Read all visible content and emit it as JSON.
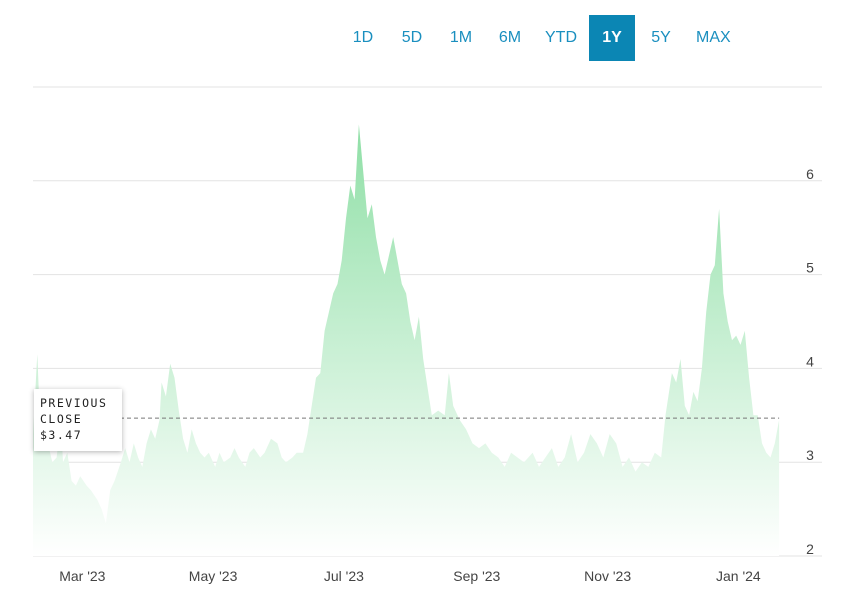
{
  "range_selector": {
    "buttons": [
      "1D",
      "5D",
      "1M",
      "6M",
      "YTD",
      "1Y",
      "5Y",
      "MAX"
    ],
    "active": "1Y"
  },
  "previous_close": {
    "line1": "PREVIOUS",
    "line2": "CLOSE",
    "value_label": "$3.47",
    "value": 3.47
  },
  "colors": {
    "area_top": "#8fdfa6",
    "area_bottom": "#ffffff",
    "button_text": "#1a8fbf",
    "button_active_bg": "#0b86b4"
  },
  "chart_data": {
    "type": "area",
    "title": "",
    "xlabel": "",
    "ylabel": "",
    "ylim": [
      2,
      7
    ],
    "yticks": [
      2,
      3,
      4,
      5,
      6
    ],
    "xlim": [
      "2023-02-06",
      "2024-02-09"
    ],
    "xticks": [
      {
        "label": "Mar '23",
        "date": "2023-03-01"
      },
      {
        "label": "May '23",
        "date": "2023-05-01"
      },
      {
        "label": "Jul '23",
        "date": "2023-07-01"
      },
      {
        "label": "Sep '23",
        "date": "2023-09-01"
      },
      {
        "label": "Nov '23",
        "date": "2023-11-01"
      },
      {
        "label": "Jan '24",
        "date": "2024-01-01"
      }
    ],
    "grid": "horizontal",
    "series": [
      {
        "values": [
          [
            "2023-02-06",
            3.3
          ],
          [
            "2023-02-08",
            4.15
          ],
          [
            "2023-02-09",
            3.6
          ],
          [
            "2023-02-11",
            3.5
          ],
          [
            "2023-02-13",
            3.2
          ],
          [
            "2023-02-15",
            3.0
          ],
          [
            "2023-02-17",
            3.05
          ],
          [
            "2023-02-19",
            3.45
          ],
          [
            "2023-02-20",
            3.0
          ],
          [
            "2023-02-22",
            3.1
          ],
          [
            "2023-02-24",
            2.8
          ],
          [
            "2023-02-26",
            2.75
          ],
          [
            "2023-02-28",
            2.85
          ],
          [
            "2023-03-03",
            2.75
          ],
          [
            "2023-03-05",
            2.7
          ],
          [
            "2023-03-08",
            2.6
          ],
          [
            "2023-03-10",
            2.5
          ],
          [
            "2023-03-12",
            2.35
          ],
          [
            "2023-03-14",
            2.7
          ],
          [
            "2023-03-16",
            2.8
          ],
          [
            "2023-03-19",
            3.0
          ],
          [
            "2023-03-21",
            3.15
          ],
          [
            "2023-03-23",
            3.0
          ],
          [
            "2023-03-25",
            3.2
          ],
          [
            "2023-03-27",
            3.05
          ],
          [
            "2023-03-29",
            2.95
          ],
          [
            "2023-03-31",
            3.2
          ],
          [
            "2023-04-02",
            3.35
          ],
          [
            "2023-04-04",
            3.25
          ],
          [
            "2023-04-06",
            3.45
          ],
          [
            "2023-04-07",
            3.85
          ],
          [
            "2023-04-09",
            3.7
          ],
          [
            "2023-04-11",
            4.05
          ],
          [
            "2023-04-13",
            3.9
          ],
          [
            "2023-04-15",
            3.55
          ],
          [
            "2023-04-17",
            3.25
          ],
          [
            "2023-04-19",
            3.1
          ],
          [
            "2023-04-21",
            3.35
          ],
          [
            "2023-04-23",
            3.2
          ],
          [
            "2023-04-25",
            3.1
          ],
          [
            "2023-04-27",
            3.05
          ],
          [
            "2023-04-29",
            3.1
          ],
          [
            "2023-05-02",
            2.95
          ],
          [
            "2023-05-04",
            3.1
          ],
          [
            "2023-05-06",
            3.0
          ],
          [
            "2023-05-09",
            3.05
          ],
          [
            "2023-05-11",
            3.15
          ],
          [
            "2023-05-13",
            3.05
          ],
          [
            "2023-05-16",
            2.95
          ],
          [
            "2023-05-18",
            3.1
          ],
          [
            "2023-05-20",
            3.15
          ],
          [
            "2023-05-23",
            3.05
          ],
          [
            "2023-05-25",
            3.1
          ],
          [
            "2023-05-28",
            3.25
          ],
          [
            "2023-05-31",
            3.2
          ],
          [
            "2023-06-02",
            3.05
          ],
          [
            "2023-06-04",
            3.0
          ],
          [
            "2023-06-07",
            3.05
          ],
          [
            "2023-06-09",
            3.1
          ],
          [
            "2023-06-12",
            3.1
          ],
          [
            "2023-06-14",
            3.3
          ],
          [
            "2023-06-16",
            3.6
          ],
          [
            "2023-06-18",
            3.9
          ],
          [
            "2023-06-20",
            3.95
          ],
          [
            "2023-06-22",
            4.4
          ],
          [
            "2023-06-24",
            4.6
          ],
          [
            "2023-06-26",
            4.8
          ],
          [
            "2023-06-28",
            4.9
          ],
          [
            "2023-06-30",
            5.15
          ],
          [
            "2023-07-02",
            5.6
          ],
          [
            "2023-07-04",
            5.95
          ],
          [
            "2023-07-06",
            5.8
          ],
          [
            "2023-07-08",
            6.6
          ],
          [
            "2023-07-10",
            6.1
          ],
          [
            "2023-07-12",
            5.6
          ],
          [
            "2023-07-14",
            5.75
          ],
          [
            "2023-07-16",
            5.4
          ],
          [
            "2023-07-18",
            5.15
          ],
          [
            "2023-07-20",
            5.0
          ],
          [
            "2023-07-22",
            5.2
          ],
          [
            "2023-07-24",
            5.4
          ],
          [
            "2023-07-26",
            5.15
          ],
          [
            "2023-07-28",
            4.9
          ],
          [
            "2023-07-30",
            4.8
          ],
          [
            "2023-08-01",
            4.5
          ],
          [
            "2023-08-03",
            4.3
          ],
          [
            "2023-08-05",
            4.55
          ],
          [
            "2023-08-07",
            4.1
          ],
          [
            "2023-08-09",
            3.8
          ],
          [
            "2023-08-11",
            3.5
          ],
          [
            "2023-08-14",
            3.55
          ],
          [
            "2023-08-17",
            3.5
          ],
          [
            "2023-08-19",
            3.95
          ],
          [
            "2023-08-21",
            3.6
          ],
          [
            "2023-08-24",
            3.45
          ],
          [
            "2023-08-27",
            3.35
          ],
          [
            "2023-08-30",
            3.2
          ],
          [
            "2023-09-02",
            3.15
          ],
          [
            "2023-09-05",
            3.2
          ],
          [
            "2023-09-08",
            3.1
          ],
          [
            "2023-09-11",
            3.05
          ],
          [
            "2023-09-14",
            2.95
          ],
          [
            "2023-09-17",
            3.1
          ],
          [
            "2023-09-20",
            3.05
          ],
          [
            "2023-09-23",
            3.0
          ],
          [
            "2023-09-27",
            3.1
          ],
          [
            "2023-09-30",
            2.95
          ],
          [
            "2023-10-03",
            3.05
          ],
          [
            "2023-10-06",
            3.15
          ],
          [
            "2023-10-09",
            2.95
          ],
          [
            "2023-10-12",
            3.05
          ],
          [
            "2023-10-15",
            3.3
          ],
          [
            "2023-10-18",
            3.0
          ],
          [
            "2023-10-21",
            3.1
          ],
          [
            "2023-10-24",
            3.3
          ],
          [
            "2023-10-27",
            3.2
          ],
          [
            "2023-10-30",
            3.05
          ],
          [
            "2023-11-02",
            3.3
          ],
          [
            "2023-11-05",
            3.2
          ],
          [
            "2023-11-08",
            2.95
          ],
          [
            "2023-11-11",
            3.05
          ],
          [
            "2023-11-14",
            2.9
          ],
          [
            "2023-11-17",
            3.0
          ],
          [
            "2023-11-20",
            2.95
          ],
          [
            "2023-11-23",
            3.1
          ],
          [
            "2023-11-26",
            3.05
          ],
          [
            "2023-11-28",
            3.5
          ],
          [
            "2023-12-01",
            3.95
          ],
          [
            "2023-12-03",
            3.85
          ],
          [
            "2023-12-05",
            4.1
          ],
          [
            "2023-12-07",
            3.6
          ],
          [
            "2023-12-09",
            3.5
          ],
          [
            "2023-12-11",
            3.75
          ],
          [
            "2023-12-13",
            3.65
          ],
          [
            "2023-12-15",
            4.0
          ],
          [
            "2023-12-17",
            4.6
          ],
          [
            "2023-12-19",
            5.0
          ],
          [
            "2023-12-21",
            5.1
          ],
          [
            "2023-12-23",
            5.7
          ],
          [
            "2023-12-25",
            4.8
          ],
          [
            "2023-12-27",
            4.5
          ],
          [
            "2023-12-29",
            4.3
          ],
          [
            "2023-12-31",
            4.35
          ],
          [
            "2024-01-02",
            4.25
          ],
          [
            "2024-01-04",
            4.4
          ],
          [
            "2024-01-06",
            3.9
          ],
          [
            "2024-01-08",
            3.5
          ],
          [
            "2024-01-10",
            3.5
          ],
          [
            "2024-01-12",
            3.2
          ],
          [
            "2024-01-14",
            3.1
          ],
          [
            "2024-01-16",
            3.05
          ],
          [
            "2024-01-18",
            3.2
          ],
          [
            "2024-01-20",
            3.45
          ]
        ]
      }
    ]
  }
}
